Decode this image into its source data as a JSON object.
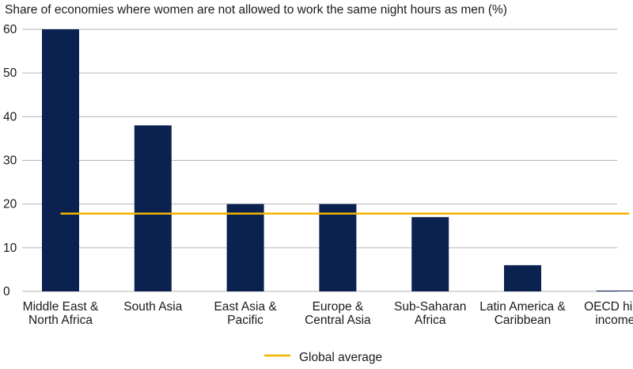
{
  "chart_data": {
    "type": "bar",
    "title": "Share of economies where women are not allowed to work the same night hours as men (%)",
    "categories": [
      [
        "Middle East &",
        "North Africa"
      ],
      [
        "South Asia"
      ],
      [
        "East Asia &",
        "Pacific"
      ],
      [
        "Europe &",
        "Central Asia"
      ],
      [
        "Sub-Saharan",
        "Africa"
      ],
      [
        "Latin America &",
        "Caribbean"
      ],
      [
        "OECD high",
        "income"
      ]
    ],
    "values": [
      60,
      38,
      20,
      20,
      17,
      6,
      0
    ],
    "ylim": [
      0,
      60
    ],
    "yticks": [
      0,
      10,
      20,
      30,
      40,
      50,
      60
    ],
    "grid": true,
    "reference_line": {
      "name": "Global average",
      "value": 17.8
    },
    "legend": {
      "position": "bottom",
      "label": "Global average"
    },
    "colors": {
      "bar": "#0b2150",
      "reference_line": "#f2b400",
      "grid": "#b4b4b4",
      "text": "#1a1a1a"
    }
  }
}
